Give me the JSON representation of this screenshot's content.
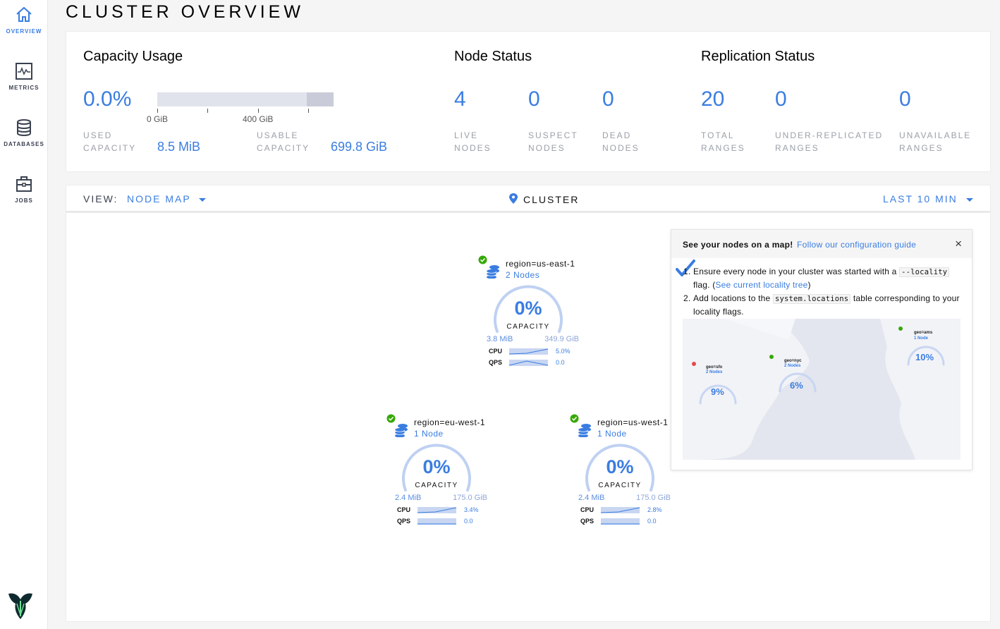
{
  "sidebar": {
    "items": [
      {
        "label": "OVERVIEW",
        "icon": "home-icon",
        "active": true
      },
      {
        "label": "METRICS",
        "icon": "metrics-icon"
      },
      {
        "label": "DATABASES",
        "icon": "database-icon"
      },
      {
        "label": "JOBS",
        "icon": "briefcase-icon"
      }
    ],
    "logo": "cockroach-logo"
  },
  "page_title": "CLUSTER OVERVIEW",
  "capacity": {
    "title": "Capacity Usage",
    "percent": "0.0%",
    "ticks": [
      "0 GiB",
      "400 GiB"
    ],
    "used_label_1": "USED",
    "used_label_2": "CAPACITY",
    "used_value": "8.5 MiB",
    "usable_label_1": "USABLE",
    "usable_label_2": "CAPACITY",
    "usable_value": "699.8 GiB"
  },
  "node_status": {
    "title": "Node Status",
    "stats": [
      {
        "value": "4",
        "l1": "LIVE",
        "l2": "NODES"
      },
      {
        "value": "0",
        "l1": "SUSPECT",
        "l2": "NODES"
      },
      {
        "value": "0",
        "l1": "DEAD",
        "l2": "NODES"
      }
    ]
  },
  "replication": {
    "title": "Replication Status",
    "stats": [
      {
        "value": "20",
        "l1": "TOTAL",
        "l2": "RANGES"
      },
      {
        "value": "0",
        "l1": "UNDER-REPLICATED",
        "l2": "RANGES"
      },
      {
        "value": "0",
        "l1": "UNAVAILABLE",
        "l2": "RANGES"
      }
    ]
  },
  "view": {
    "label": "VIEW:",
    "selected": "NODE MAP",
    "location": "CLUSTER",
    "time_range": "LAST 10 MIN"
  },
  "colors": {
    "accent": "#3a7de1",
    "ok": "#37a806",
    "arc": "#bfd1f2"
  },
  "regions": [
    {
      "name": "region=us-east-1",
      "nodes": "2 Nodes",
      "percent": "0%",
      "capacity_label": "CAPACITY",
      "used": "3.8 MiB",
      "total": "349.9 GiB",
      "cpu_label": "CPU",
      "cpu": "5.0%",
      "qps_label": "QPS",
      "qps": "0.0",
      "status": "healthy"
    },
    {
      "name": "region=eu-west-1",
      "nodes": "1 Node",
      "percent": "0%",
      "capacity_label": "CAPACITY",
      "used": "2.4 MiB",
      "total": "175.0 GiB",
      "cpu_label": "CPU",
      "cpu": "3.4%",
      "qps_label": "QPS",
      "qps": "0.0",
      "status": "healthy"
    },
    {
      "name": "region=us-west-1",
      "nodes": "1 Node",
      "percent": "0%",
      "capacity_label": "CAPACITY",
      "used": "2.4 MiB",
      "total": "175.0 GiB",
      "cpu_label": "CPU",
      "cpu": "2.8%",
      "qps_label": "QPS",
      "qps": "0.0",
      "status": "healthy"
    }
  ],
  "popup": {
    "heading": "See your nodes on a map!",
    "link": "Follow our configuration guide",
    "close": "×",
    "step1_a": "Ensure every node in your cluster was started with a",
    "step1_code": "--locality",
    "step1_b": "flag. (",
    "step1_link": "See current locality tree",
    "step1_c": ")",
    "step2_a": "Add locations to the",
    "step2_code": "system.locations",
    "step2_b": "table corresponding to your locality flags.",
    "map_image_text": [
      "geo=sfo",
      "2 Nodes",
      "9%",
      "geo=nyc",
      "2 Nodes",
      "6%",
      "geo=ams",
      "1 Node",
      "10%"
    ]
  }
}
